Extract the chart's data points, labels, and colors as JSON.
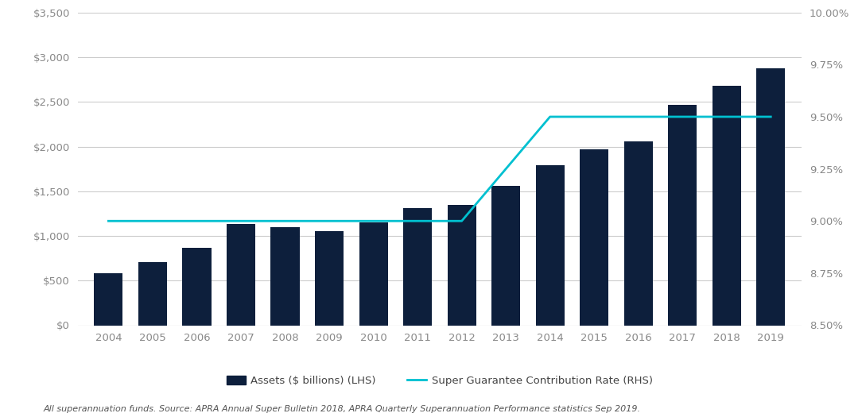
{
  "years": [
    2004,
    2005,
    2006,
    2007,
    2008,
    2009,
    2010,
    2011,
    2012,
    2013,
    2014,
    2015,
    2016,
    2017,
    2018,
    2019
  ],
  "assets": [
    580,
    710,
    870,
    1130,
    1100,
    1050,
    1150,
    1310,
    1350,
    1560,
    1790,
    1970,
    2060,
    2470,
    2680,
    2880
  ],
  "contribution_rate": [
    9.0,
    9.0,
    9.0,
    9.0,
    9.0,
    9.0,
    9.0,
    9.0,
    9.0,
    9.25,
    9.5,
    9.5,
    9.5,
    9.5,
    9.5,
    9.5
  ],
  "bar_color": "#0d1f3c",
  "line_color": "#00c0d0",
  "background_color": "#ffffff",
  "grid_color": "#cccccc",
  "ylim_left": [
    0,
    3500
  ],
  "ylim_right": [
    8.5,
    10.0
  ],
  "yticks_left": [
    0,
    500,
    1000,
    1500,
    2000,
    2500,
    3000,
    3500
  ],
  "yticks_right": [
    8.5,
    8.75,
    9.0,
    9.25,
    9.5,
    9.75,
    10.0
  ],
  "legend_label_bar": "Assets ($ billions) (LHS)",
  "legend_label_line": "Super Guarantee Contribution Rate (RHS)",
  "source_text": "All superannuation funds. Source: APRA Annual Super Bulletin 2018, APRA Quarterly Superannuation Performance statistics Sep 2019.",
  "figure_width": 10.84,
  "figure_height": 5.25,
  "bar_width": 0.65
}
